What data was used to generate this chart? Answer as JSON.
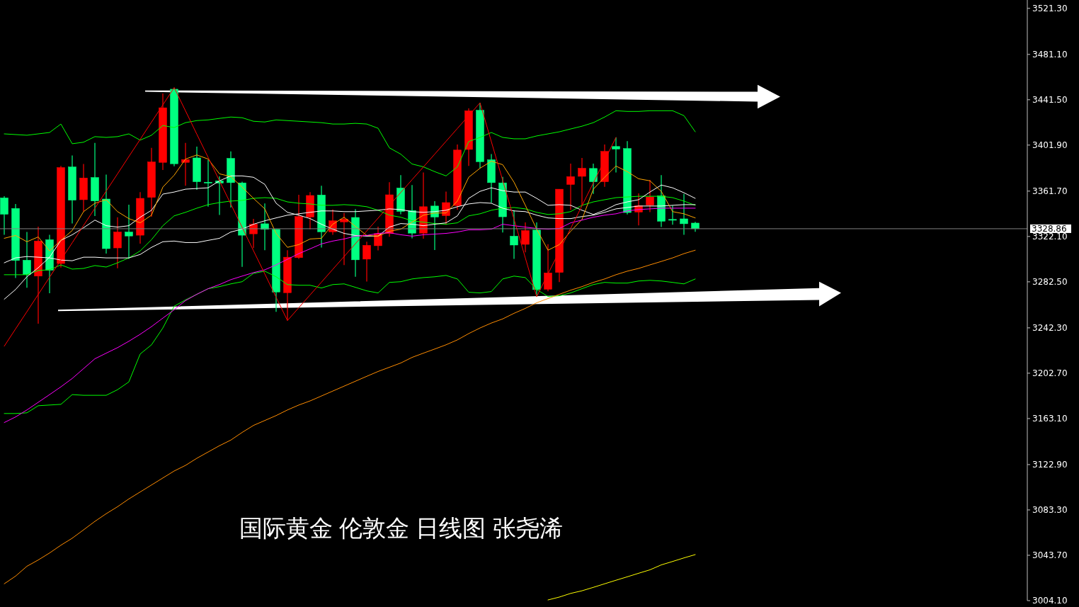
{
  "chart_data": {
    "type": "candlestick",
    "categories": [
      null,
      null,
      null,
      null,
      null,
      null,
      null,
      null,
      null,
      null,
      null,
      null,
      null,
      null,
      null,
      null,
      null,
      null,
      null,
      null,
      null,
      null,
      null,
      null,
      null,
      null,
      null,
      null,
      null,
      null,
      null,
      null,
      null,
      null,
      null,
      null,
      null,
      null,
      null,
      null,
      null,
      null,
      null,
      null,
      null,
      null,
      null,
      null,
      null,
      null,
      null,
      null,
      null,
      null,
      null,
      null,
      null,
      null,
      null,
      null,
      null,
      null
    ],
    "ohlc": [
      [
        3355.8,
        3357.2,
        3323.6,
        3341.5
      ],
      [
        3346.6,
        3350.5,
        3285.8,
        3301.1
      ],
      [
        3301.4,
        3326.0,
        3277.3,
        3288.9
      ],
      [
        3287.5,
        3330.7,
        3246.0,
        3318.1
      ],
      [
        3319.3,
        3323.6,
        3272.6,
        3292.6
      ],
      [
        3298.5,
        3383.7,
        3295.0,
        3382.3
      ],
      [
        3382.8,
        3392.9,
        3333.4,
        3353.8
      ],
      [
        3354.2,
        3385.4,
        3344.0,
        3373.2
      ],
      [
        3373.6,
        3403.8,
        3339.9,
        3353.1
      ],
      [
        3354.8,
        3376.2,
        3307.2,
        3311.5
      ],
      [
        3312.1,
        3338.9,
        3294.4,
        3326.0
      ],
      [
        3326.0,
        3349.9,
        3302.6,
        3322.5
      ],
      [
        3323.2,
        3360.9,
        3315.8,
        3355.4
      ],
      [
        3356.2,
        3399.5,
        3339.3,
        3387.2
      ],
      [
        3386.8,
        3447.0,
        3380.1,
        3434.5
      ],
      [
        3450.7,
        3452.1,
        3383.4,
        3385.6
      ],
      [
        3386.8,
        3403.8,
        3366.4,
        3389.3
      ],
      [
        3390.7,
        3400.5,
        3362.9,
        3369.9
      ],
      [
        3369.5,
        3388.9,
        3348.1,
        3369.1
      ],
      [
        3370.7,
        3374.6,
        3340.9,
        3368.7
      ],
      [
        3390.3,
        3396.4,
        3347.4,
        3369.1
      ],
      [
        3368.9,
        3369.9,
        3295.6,
        3323.2
      ],
      [
        3324.4,
        3337.5,
        3311.9,
        3332.8
      ],
      [
        3333.2,
        3350.9,
        3310.1,
        3328.3
      ],
      [
        3328.3,
        3328.3,
        3256.3,
        3273.6
      ],
      [
        3273.0,
        3310.1,
        3248.7,
        3304.0
      ],
      [
        3303.6,
        3358.5,
        3302.6,
        3339.5
      ],
      [
        3339.1,
        3360.9,
        3328.3,
        3357.9
      ],
      [
        3358.3,
        3366.4,
        3312.4,
        3326.2
      ],
      [
        3326.2,
        3345.6,
        3323.6,
        3335.8
      ],
      [
        3334.8,
        3342.6,
        3297.1,
        3337.2
      ],
      [
        3338.7,
        3346.0,
        3286.9,
        3301.7
      ],
      [
        3302.3,
        3317.5,
        3282.8,
        3314.4
      ],
      [
        3314.0,
        3330.7,
        3309.9,
        3324.6
      ],
      [
        3324.6,
        3369.5,
        3321.9,
        3358.5
      ],
      [
        3364.4,
        3375.6,
        3341.5,
        3344.0
      ],
      [
        3344.8,
        3367.0,
        3320.5,
        3325.0
      ],
      [
        3325.0,
        3378.0,
        3320.1,
        3348.1
      ],
      [
        3348.7,
        3353.0,
        3310.3,
        3339.1
      ],
      [
        3340.3,
        3361.3,
        3332.3,
        3351.7
      ],
      [
        3349.1,
        3402.5,
        3345.4,
        3397.6
      ],
      [
        3398.1,
        3433.9,
        3383.7,
        3431.9
      ],
      [
        3432.3,
        3438.8,
        3381.7,
        3387.4
      ],
      [
        3389.1,
        3394.0,
        3351.5,
        3369.1
      ],
      [
        3368.9,
        3374.2,
        3325.6,
        3339.3
      ],
      [
        3322.4,
        3345.0,
        3302.6,
        3314.6
      ],
      [
        3315.2,
        3334.4,
        3308.3,
        3327.3
      ],
      [
        3327.7,
        3334.4,
        3269.5,
        3275.7
      ],
      [
        3276.0,
        3315.4,
        3274.2,
        3290.3
      ],
      [
        3290.7,
        3363.4,
        3282.2,
        3363.4
      ],
      [
        3367.5,
        3385.8,
        3345.4,
        3374.4
      ],
      [
        3374.6,
        3390.7,
        3349.1,
        3381.7
      ],
      [
        3381.5,
        3385.8,
        3359.3,
        3369.9
      ],
      [
        3369.9,
        3402.5,
        3365.4,
        3396.4
      ],
      [
        3400.7,
        3408.6,
        3378.0,
        3398.4
      ],
      [
        3398.9,
        3405.4,
        3341.3,
        3343.0
      ],
      [
        3343.4,
        3359.7,
        3331.7,
        3349.1
      ],
      [
        3349.5,
        3371.5,
        3343.4,
        3356.6
      ],
      [
        3357.7,
        3375.6,
        3330.3,
        3335.4
      ],
      [
        3337.0,
        3349.1,
        3332.3,
        3336.9
      ],
      [
        3337.5,
        3359.3,
        3323.6,
        3333.2
      ],
      [
        3333.8,
        3334.8,
        3326.2,
        3328.9
      ]
    ],
    "colors": [
      "#00ff80",
      "#00ff80",
      "#00ff80",
      "#ff0000",
      "#00ff80",
      "#ff0000",
      "#00ff80",
      "#ff0000",
      "#00ff80",
      "#00ff80",
      "#ff0000",
      "#00ff80",
      "#ff0000",
      "#ff0000",
      "#ff0000",
      "#00ff80",
      "#ff0000",
      "#00ff80",
      "#00ff80",
      "#00ff80",
      "#00ff80",
      "#00ff80",
      "#ff0000",
      "#00ff80",
      "#00ff80",
      "#ff0000",
      "#ff0000",
      "#ff0000",
      "#00ff80",
      "#ff0000",
      "#ff0000",
      "#00ff80",
      "#ff0000",
      "#ff0000",
      "#ff0000",
      "#00ff80",
      "#00ff80",
      "#ff0000",
      "#00ff80",
      "#ff0000",
      "#ff0000",
      "#ff0000",
      "#00ff80",
      "#00ff80",
      "#00ff80",
      "#00ff80",
      "#ff0000",
      "#00ff80",
      "#ff0000",
      "#ff0000",
      "#ff0000",
      "#ff0000",
      "#00ff80",
      "#ff0000",
      "#00ff80",
      "#00ff80",
      "#ff0000",
      "#ff0000",
      "#00ff80",
      "#00ff80",
      "#00ff80",
      "#00ff80"
    ],
    "series": [
      {
        "type": "line",
        "color": "#00ff00",
        "values": [
          3411.7,
          3411.1,
          3410.5,
          3411.7,
          3412.9,
          3420.3,
          3403.1,
          3404.4,
          3409.3,
          3408.6,
          3409.3,
          3411.7,
          3406.2,
          3410.5,
          3419.0,
          3417.2,
          3421.5,
          3423.3,
          3423.9,
          3425.2,
          3426.4,
          3425.8,
          3422.7,
          3422.1,
          3423.9,
          3423.3,
          3422.7,
          3422.1,
          3421.5,
          3420.3,
          3420.3,
          3420.9,
          3420.3,
          3416.6,
          3399.5,
          3394.0,
          3385.4,
          3382.9,
          3378.7,
          3375.0,
          3382.9,
          3405.0,
          3408.6,
          3412.9,
          3408.6,
          3407.4,
          3407.4,
          3409.9,
          3411.7,
          3413.5,
          3416.0,
          3418.4,
          3421.5,
          3426.4,
          3431.9,
          3431.3,
          3431.3,
          3431.9,
          3431.9,
          3431.9,
          3427.6,
          3413.5
        ]
      },
      {
        "type": "line",
        "color": "#00ff00",
        "values": [
          3288.7,
          3288.7,
          3288.7,
          3292.4,
          3293.0,
          3297.3,
          3293.6,
          3294.2,
          3296.7,
          3295.4,
          3299.1,
          3303.4,
          3309.5,
          3319.3,
          3331.5,
          3340.1,
          3343.2,
          3346.8,
          3349.9,
          3351.7,
          3353.0,
          3353.6,
          3355.4,
          3356.0,
          3355.4,
          3352.3,
          3351.1,
          3350.5,
          3349.3,
          3349.3,
          3349.9,
          3349.3,
          3348.1,
          3345.0,
          3340.7,
          3338.9,
          3335.8,
          3334.6,
          3333.4,
          3332.8,
          3334.0,
          3340.1,
          3341.9,
          3345.0,
          3346.8,
          3347.4,
          3346.2,
          3343.2,
          3341.3,
          3341.9,
          3343.8,
          3349.3,
          3352.3,
          3354.2,
          3356.0,
          3356.6,
          3357.2,
          3357.2,
          3357.2,
          3356.0,
          3353.0,
          3349.3
        ]
      },
      {
        "type": "line",
        "color": "#00ff00",
        "values": [
          3167.5,
          3167.5,
          3168.1,
          3174.3,
          3174.9,
          3175.5,
          3184.0,
          3183.4,
          3183.4,
          3183.4,
          3188.3,
          3195.1,
          3219.5,
          3227.5,
          3242.2,
          3261.2,
          3266.7,
          3271.6,
          3276.5,
          3278.3,
          3280.7,
          3282.6,
          3289.9,
          3291.8,
          3286.9,
          3280.1,
          3279.5,
          3279.5,
          3277.1,
          3280.1,
          3280.7,
          3277.7,
          3274.6,
          3272.8,
          3282.0,
          3282.6,
          3285.0,
          3286.2,
          3286.9,
          3288.1,
          3285.0,
          3273.4,
          3272.8,
          3274.0,
          3285.0,
          3287.5,
          3286.2,
          3275.8,
          3269.7,
          3270.3,
          3272.8,
          3276.5,
          3280.1,
          3282.0,
          3281.4,
          3281.4,
          3283.2,
          3283.8,
          3283.2,
          3282.0,
          3280.7,
          3285.0
        ]
      },
      {
        "type": "line",
        "color": "#ffffff",
        "values": [
          3267.3,
          3275.8,
          3286.9,
          3294.8,
          3304.0,
          3318.7,
          3323.6,
          3329.7,
          3336.4,
          3331.5,
          3330.3,
          3331.5,
          3338.9,
          3345.0,
          3359.1,
          3360.9,
          3363.4,
          3364.0,
          3364.6,
          3370.7,
          3375.0,
          3375.0,
          3373.8,
          3367.6,
          3351.1,
          3343.2,
          3340.7,
          3337.7,
          3332.8,
          3328.5,
          3324.8,
          3323.0,
          3322.4,
          3322.4,
          3330.3,
          3333.4,
          3332.8,
          3331.5,
          3332.8,
          3334.0,
          3340.1,
          3355.4,
          3361.5,
          3364.6,
          3362.1,
          3360.9,
          3360.9,
          3355.4,
          3349.3,
          3349.9,
          3349.3,
          3345.0,
          3341.3,
          3345.0,
          3349.9,
          3352.3,
          3354.2,
          3360.9,
          3367.0,
          3364.6,
          3360.3,
          3355.4
        ]
      },
      {
        "type": "line",
        "color": "#ffffff",
        "values": [
          3299.1,
          3303.4,
          3304.6,
          3304.0,
          3303.4,
          3301.5,
          3300.9,
          3304.0,
          3304.0,
          3303.4,
          3303.4,
          3303.4,
          3306.4,
          3312.6,
          3317.5,
          3318.1,
          3316.8,
          3316.8,
          3318.7,
          3320.5,
          3326.0,
          3328.5,
          3332.8,
          3335.8,
          3338.3,
          3340.7,
          3341.9,
          3343.2,
          3344.4,
          3344.4,
          3343.8,
          3343.8,
          3344.4,
          3345.0,
          3346.2,
          3345.6,
          3343.8,
          3343.2,
          3343.8,
          3345.0,
          3348.1,
          3350.5,
          3351.7,
          3351.1,
          3346.8,
          3344.4,
          3343.8,
          3340.7,
          3338.3,
          3337.7,
          3337.7,
          3339.5,
          3340.7,
          3343.2,
          3346.2,
          3347.4,
          3348.7,
          3348.7,
          3348.7,
          3349.3,
          3349.9,
          3349.9
        ]
      },
      {
        "type": "line",
        "color": "#ffa500",
        "values": [
          3320.5,
          3323.0,
          3317.5,
          3321.7,
          3309.5,
          3318.7,
          3327.3,
          3343.8,
          3351.1,
          3354.2,
          3343.8,
          3337.7,
          3334.0,
          3340.7,
          3365.2,
          3375.6,
          3389.7,
          3393.3,
          3389.7,
          3376.8,
          3374.4,
          3365.2,
          3355.4,
          3346.2,
          3324.8,
          3312.6,
          3315.0,
          3319.9,
          3320.5,
          3332.8,
          3338.9,
          3330.9,
          3323.0,
          3322.4,
          3326.6,
          3328.5,
          3334.6,
          3340.7,
          3342.6,
          3342.6,
          3353.0,
          3373.8,
          3381.7,
          3387.8,
          3384.8,
          3369.5,
          3349.3,
          3328.5,
          3310.1,
          3315.0,
          3326.6,
          3337.0,
          3363.4,
          3373.8,
          3383.6,
          3378.7,
          3372.5,
          3370.7,
          3361.5,
          3343.8,
          3341.9,
          3338.3
        ]
      },
      {
        "type": "line",
        "color": "#ff00ff",
        "values": [
          3159.6,
          3164.5,
          3170.6,
          3177.3,
          3184.0,
          3190.8,
          3198.1,
          3206.7,
          3215.3,
          3220.2,
          3225.0,
          3230.6,
          3236.7,
          3243.4,
          3250.8,
          3258.1,
          3266.1,
          3271.6,
          3276.5,
          3280.1,
          3284.4,
          3287.5,
          3290.5,
          3293.0,
          3297.3,
          3302.2,
          3307.1,
          3311.3,
          3315.6,
          3318.1,
          3319.9,
          3322.4,
          3323.0,
          3324.8,
          3325.4,
          3323.6,
          3322.4,
          3323.6,
          3324.2,
          3324.8,
          3326.0,
          3327.9,
          3327.9,
          3328.5,
          3332.8,
          3331.5,
          3330.3,
          3329.1,
          3328.5,
          3329.1,
          3334.0,
          3336.4,
          3338.9,
          3340.7,
          3341.9,
          3344.4,
          3345.6,
          3346.2,
          3346.8,
          3346.8,
          3346.8,
          3346.8
        ]
      },
      {
        "type": "line",
        "color": "#ff8c00",
        "values": [
          3018.8,
          3025.5,
          3034.1,
          3039.6,
          3045.7,
          3052.5,
          3058.6,
          3065.9,
          3073.3,
          3080.0,
          3086.1,
          3092.9,
          3099.0,
          3105.1,
          3111.2,
          3117.3,
          3122.2,
          3128.4,
          3133.9,
          3139.4,
          3144.3,
          3151.0,
          3157.1,
          3161.4,
          3165.7,
          3170.6,
          3174.9,
          3178.5,
          3182.8,
          3187.1,
          3191.4,
          3195.7,
          3200.0,
          3204.2,
          3207.9,
          3211.6,
          3216.5,
          3220.2,
          3223.8,
          3227.5,
          3231.8,
          3237.3,
          3242.2,
          3246.5,
          3250.1,
          3255.0,
          3259.3,
          3264.2,
          3267.9,
          3271.6,
          3275.2,
          3278.3,
          3282.0,
          3285.0,
          3288.7,
          3291.8,
          3294.2,
          3297.3,
          3300.3,
          3303.4,
          3307.1,
          3310.1
        ]
      },
      {
        "type": "line",
        "color": "#ffff00",
        "values": [
          null,
          null,
          null,
          null,
          null,
          null,
          null,
          null,
          null,
          null,
          null,
          null,
          null,
          null,
          null,
          null,
          null,
          null,
          null,
          null,
          null,
          null,
          null,
          null,
          null,
          null,
          null,
          null,
          null,
          null,
          null,
          null,
          null,
          null,
          null,
          null,
          null,
          null,
          null,
          null,
          null,
          null,
          null,
          null,
          null,
          null,
          null,
          null,
          3004.7,
          3007.2,
          3010.4,
          3012.7,
          3015.7,
          3018.8,
          3021.9,
          3024.9,
          3028.0,
          3031.0,
          3035.3,
          3038.3,
          3041.4,
          3044.3
        ]
      },
      {
        "type": "line",
        "color": "#ff0000",
        "values": [
          3226.3,
          3241.4,
          3256.4,
          3271.5,
          3286.5,
          3301.6,
          3316.6,
          3331.7,
          3346.7,
          3361.8,
          3376.8,
          3391.9,
          3406.9,
          3422.0,
          3437.0,
          3452.1,
          3431.8,
          3411.4,
          3391.1,
          3370.7,
          3350.4,
          3330.1,
          3309.7,
          3289.4,
          3269.0,
          3248.7,
          3259.9,
          3271.1,
          3282.2,
          3293.4,
          3304.6,
          3315.8,
          3326.9,
          3338.1,
          3349.3,
          3360.5,
          3371.7,
          3382.8,
          3394.0,
          3405.2,
          3416.4,
          3427.6,
          3438.8,
          3404.9,
          3371.1,
          3337.2,
          3303.4,
          3269.5,
          3289.4,
          3309.2,
          3329.1,
          3349.0,
          3368.9,
          3388.7,
          3408.6,
          null,
          null,
          null,
          null,
          null,
          null,
          null
        ]
      }
    ],
    "ylim": [
      3004.1,
      3528.6
    ],
    "yticks": [
      {
        "value": 3004.1,
        "label": "3004.10"
      },
      {
        "value": 3043.7,
        "label": "3043.70"
      },
      {
        "value": 3083.3,
        "label": "3083.30"
      },
      {
        "value": 3122.9,
        "label": "3122.90"
      },
      {
        "value": 3163.1,
        "label": "3163.10"
      },
      {
        "value": 3202.7,
        "label": "3202.70"
      },
      {
        "value": 3242.3,
        "label": "3242.30"
      },
      {
        "value": 3282.5,
        "label": "3282.50"
      },
      {
        "value": 3322.1,
        "label": "3322.10"
      },
      {
        "value": 3361.7,
        "label": "3361.70"
      },
      {
        "value": 3401.9,
        "label": "3401.90"
      },
      {
        "value": 3441.5,
        "label": "3441.50"
      },
      {
        "value": 3481.1,
        "label": "3481.10"
      },
      {
        "value": 3521.3,
        "label": "3521.30"
      }
    ],
    "ref_lines": [
      {
        "axis": "y",
        "value": 3328.86,
        "label": "3328.86",
        "color": "#808080"
      }
    ],
    "annotations": [
      "国际黄金 伦敦金 日线图 张尧浠"
    ],
    "tick_labels": "y",
    "grid": false
  }
}
